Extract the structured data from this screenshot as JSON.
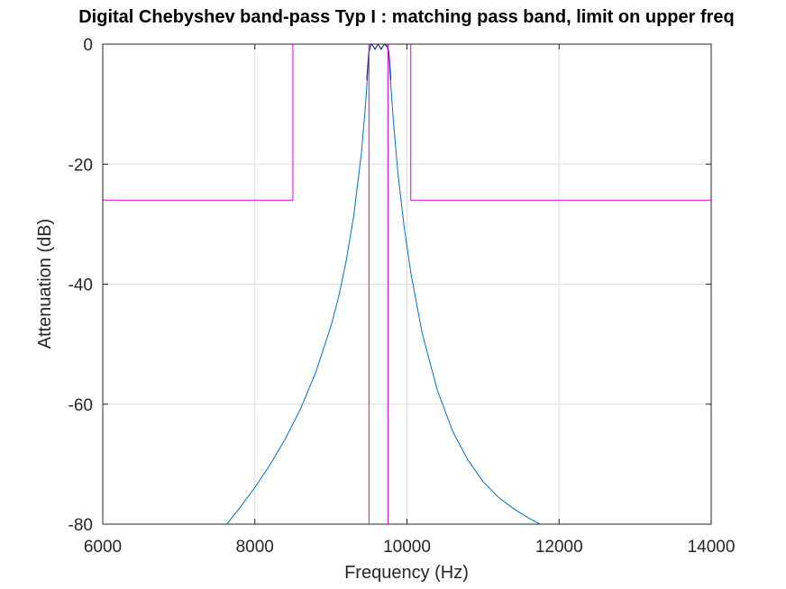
{
  "chart_data": {
    "type": "line",
    "title": "Digital Chebyshev band-pass Typ I : matching pass band, limit on upper freq",
    "xlabel": "Frequency (Hz)",
    "ylabel": "Attenuation (dB)",
    "xlim": [
      6000,
      14000
    ],
    "ylim": [
      -80,
      0
    ],
    "xticks": [
      6000,
      8000,
      10000,
      12000,
      14000
    ],
    "xtick_labels": [
      "6000",
      "8000",
      "10000",
      "12000",
      "14000"
    ],
    "yticks": [
      0,
      -20,
      -40,
      -60,
      -80
    ],
    "ytick_labels": [
      "0",
      "-20",
      "-40",
      "-60",
      "-80"
    ],
    "grid": true,
    "series": [
      {
        "kind": "filter-response",
        "color": "#0072bd",
        "points": [
          [
            7630,
            -80
          ],
          [
            7800,
            -77.3
          ],
          [
            8000,
            -73.9
          ],
          [
            8200,
            -70.1
          ],
          [
            8400,
            -65.8
          ],
          [
            8600,
            -60.8
          ],
          [
            8800,
            -54.7
          ],
          [
            9000,
            -47
          ],
          [
            9100,
            -42.2
          ],
          [
            9200,
            -36.2
          ],
          [
            9300,
            -28.6
          ],
          [
            9400,
            -18.2
          ],
          [
            9450,
            -11
          ],
          [
            9480,
            -5.5
          ],
          [
            9500,
            -1.5
          ],
          [
            9520,
            -0.4
          ],
          [
            9540,
            0
          ],
          [
            9580,
            -0.9
          ],
          [
            9620,
            0
          ],
          [
            9660,
            -0.9
          ],
          [
            9700,
            0
          ],
          [
            9740,
            -0.5
          ],
          [
            9760,
            -1.5
          ],
          [
            9780,
            -5.5
          ],
          [
            9820,
            -12.6
          ],
          [
            9880,
            -21.4
          ],
          [
            9960,
            -30.2
          ],
          [
            10050,
            -38.1
          ],
          [
            10200,
            -48.2
          ],
          [
            10400,
            -57.7
          ],
          [
            10600,
            -64.5
          ],
          [
            10800,
            -69.3
          ],
          [
            11000,
            -72.9
          ],
          [
            11200,
            -75.5
          ],
          [
            11400,
            -77.4
          ],
          [
            11600,
            -79
          ],
          [
            11750,
            -80
          ]
        ]
      },
      {
        "kind": "filter-response",
        "color": "#2b2f8f",
        "points": [
          [
            9470,
            -6
          ],
          [
            9490,
            -2.5
          ],
          [
            9500,
            -1.2
          ],
          [
            9520,
            -0.2
          ],
          [
            9540,
            0
          ],
          [
            9580,
            -0.8
          ],
          [
            9620,
            0
          ],
          [
            9660,
            -0.8
          ],
          [
            9700,
            0
          ],
          [
            9740,
            -0.3
          ],
          [
            9760,
            -1.2
          ],
          [
            9770,
            -2.5
          ],
          [
            9790,
            -6
          ]
        ]
      },
      {
        "kind": "tolerance-mask",
        "color": "#dd00dd",
        "points": [
          [
            6000,
            -26
          ],
          [
            8500,
            -26
          ],
          [
            8500,
            0
          ],
          [
            9500,
            0
          ],
          [
            9500,
            -80
          ],
          [
            9500,
            0
          ],
          [
            9750,
            0
          ],
          [
            9750,
            -80
          ],
          [
            9750,
            0
          ],
          [
            10000,
            0
          ],
          [
            10050,
            0
          ],
          [
            10050,
            -26
          ],
          [
            14000,
            -26
          ]
        ]
      },
      {
        "kind": "tolerance-mask",
        "color": "#dd00dd",
        "points": [
          [
            10000,
            0
          ],
          [
            10000,
            -0.8
          ]
        ]
      }
    ]
  }
}
